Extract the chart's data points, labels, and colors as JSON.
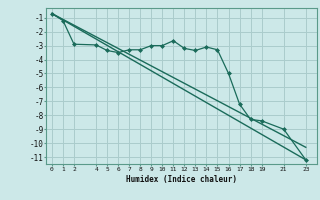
{
  "xlabel": "Humidex (Indice chaleur)",
  "bg_color": "#cce8e8",
  "grid_color": "#aacccc",
  "line_color": "#1a6b5a",
  "xticks": [
    0,
    1,
    2,
    4,
    5,
    6,
    7,
    8,
    9,
    10,
    11,
    12,
    13,
    14,
    15,
    16,
    17,
    18,
    19,
    21,
    23
  ],
  "yticks": [
    -1,
    -2,
    -3,
    -4,
    -5,
    -6,
    -7,
    -8,
    -9,
    -10,
    -11
  ],
  "ylim": [
    -11.5,
    -0.3
  ],
  "xlim": [
    -0.5,
    24.0
  ],
  "line1_x": [
    0,
    23
  ],
  "line1_y": [
    -0.7,
    -11.2
  ],
  "line2_x": [
    0,
    23
  ],
  "line2_y": [
    -0.7,
    -10.3
  ],
  "line3_x": [
    0,
    1,
    2,
    4,
    5,
    6,
    7,
    8,
    9,
    10,
    11,
    12,
    13,
    14,
    15,
    16,
    17,
    18,
    19,
    21,
    23
  ],
  "line3_y": [
    -0.7,
    -1.2,
    -2.9,
    -2.95,
    -3.35,
    -3.5,
    -3.3,
    -3.3,
    -3.0,
    -3.0,
    -2.65,
    -3.2,
    -3.35,
    -3.1,
    -3.3,
    -5.0,
    -7.2,
    -8.3,
    -8.4,
    -9.0,
    -11.2
  ],
  "figsize": [
    3.2,
    2.0
  ],
  "dpi": 100
}
